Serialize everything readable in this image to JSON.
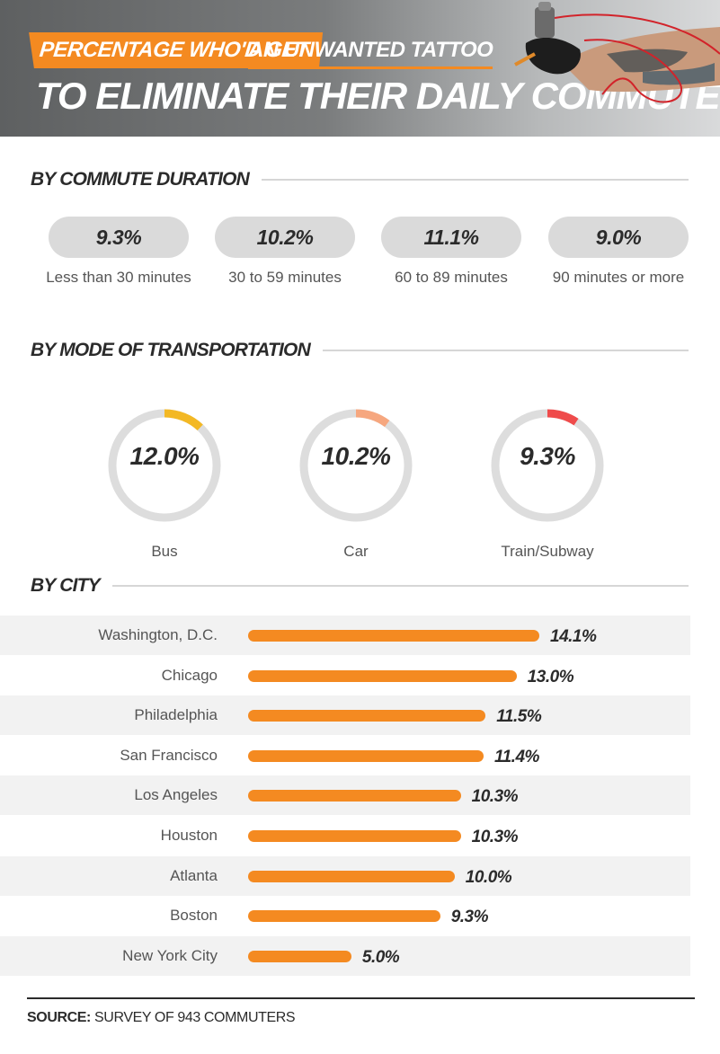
{
  "header": {
    "tag": "PERCENTAGE WHO'D GET",
    "sub": "AN UNWANTED TATTOO",
    "main": "TO ELIMINATE THEIR DAILY COMMUTE"
  },
  "sections": {
    "duration": "BY COMMUTE DURATION",
    "mode": "BY MODE OF TRANSPORTATION",
    "city": "BY CITY"
  },
  "chart_data": [
    {
      "type": "table",
      "title": "BY COMMUTE DURATION",
      "categories": [
        "Less than 30 minutes",
        "30 to 59 minutes",
        "60 to 89 minutes",
        "90 minutes or more"
      ],
      "values": [
        9.3,
        10.2,
        11.1,
        9.0
      ],
      "labels": [
        "9.3%",
        "10.2%",
        "11.1%",
        "9.0%"
      ]
    },
    {
      "type": "pie",
      "title": "BY MODE OF TRANSPORTATION",
      "categories": [
        "Bus",
        "Car",
        "Train/Subway"
      ],
      "values": [
        12.0,
        10.2,
        9.3
      ],
      "labels": [
        "12.0%",
        "10.2%",
        "9.3%"
      ],
      "colors": [
        "#f3b824",
        "#f6a77f",
        "#ef4b4b"
      ],
      "track_color": "#dddddd"
    },
    {
      "type": "bar",
      "title": "BY CITY",
      "categories": [
        "Washington, D.C.",
        "Chicago",
        "Philadelphia",
        "San Francisco",
        "Los Angeles",
        "Houston",
        "Atlanta",
        "Boston",
        "New York City"
      ],
      "values": [
        14.1,
        13.0,
        11.5,
        11.4,
        10.3,
        10.3,
        10.0,
        9.3,
        5.0
      ],
      "labels": [
        "14.1%",
        "13.0%",
        "11.5%",
        "11.4%",
        "10.3%",
        "10.3%",
        "10.0%",
        "9.3%",
        "5.0%"
      ],
      "color": "#f48a21"
    }
  ],
  "source": {
    "label": "SOURCE:",
    "text": "SURVEY OF 943 COMMUTERS"
  }
}
